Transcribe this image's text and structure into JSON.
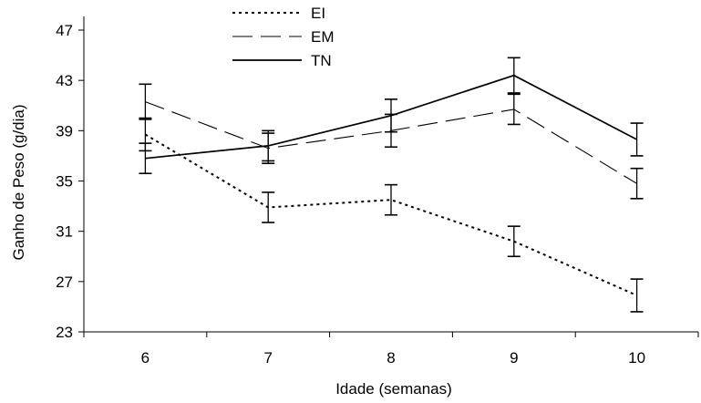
{
  "chart_data": {
    "type": "line",
    "title": "",
    "xlabel": "Idade (semanas)",
    "ylabel": "Ganho de Peso (g/dia)",
    "categories": [
      "6",
      "7",
      "8",
      "9",
      "10"
    ],
    "ylim": [
      23,
      48
    ],
    "yticks": [
      23,
      27,
      31,
      35,
      39,
      43,
      47
    ],
    "grid": false,
    "legend_position": "top-left",
    "series": [
      {
        "name": "EI",
        "style": "dotted",
        "color": "#000000",
        "values": [
          38.7,
          32.9,
          33.5,
          30.2,
          25.9
        ],
        "error": [
          1.3,
          1.2,
          1.2,
          1.2,
          1.3
        ]
      },
      {
        "name": "EM",
        "style": "long-dash",
        "color": "#000000",
        "values": [
          41.3,
          37.6,
          39.0,
          40.7,
          34.8
        ],
        "error": [
          1.4,
          1.2,
          1.3,
          1.2,
          1.2
        ]
      },
      {
        "name": "TN",
        "style": "solid",
        "color": "#000000",
        "values": [
          36.8,
          37.8,
          40.2,
          43.4,
          38.3
        ],
        "error": [
          1.2,
          1.2,
          1.3,
          1.4,
          1.3
        ]
      }
    ]
  }
}
